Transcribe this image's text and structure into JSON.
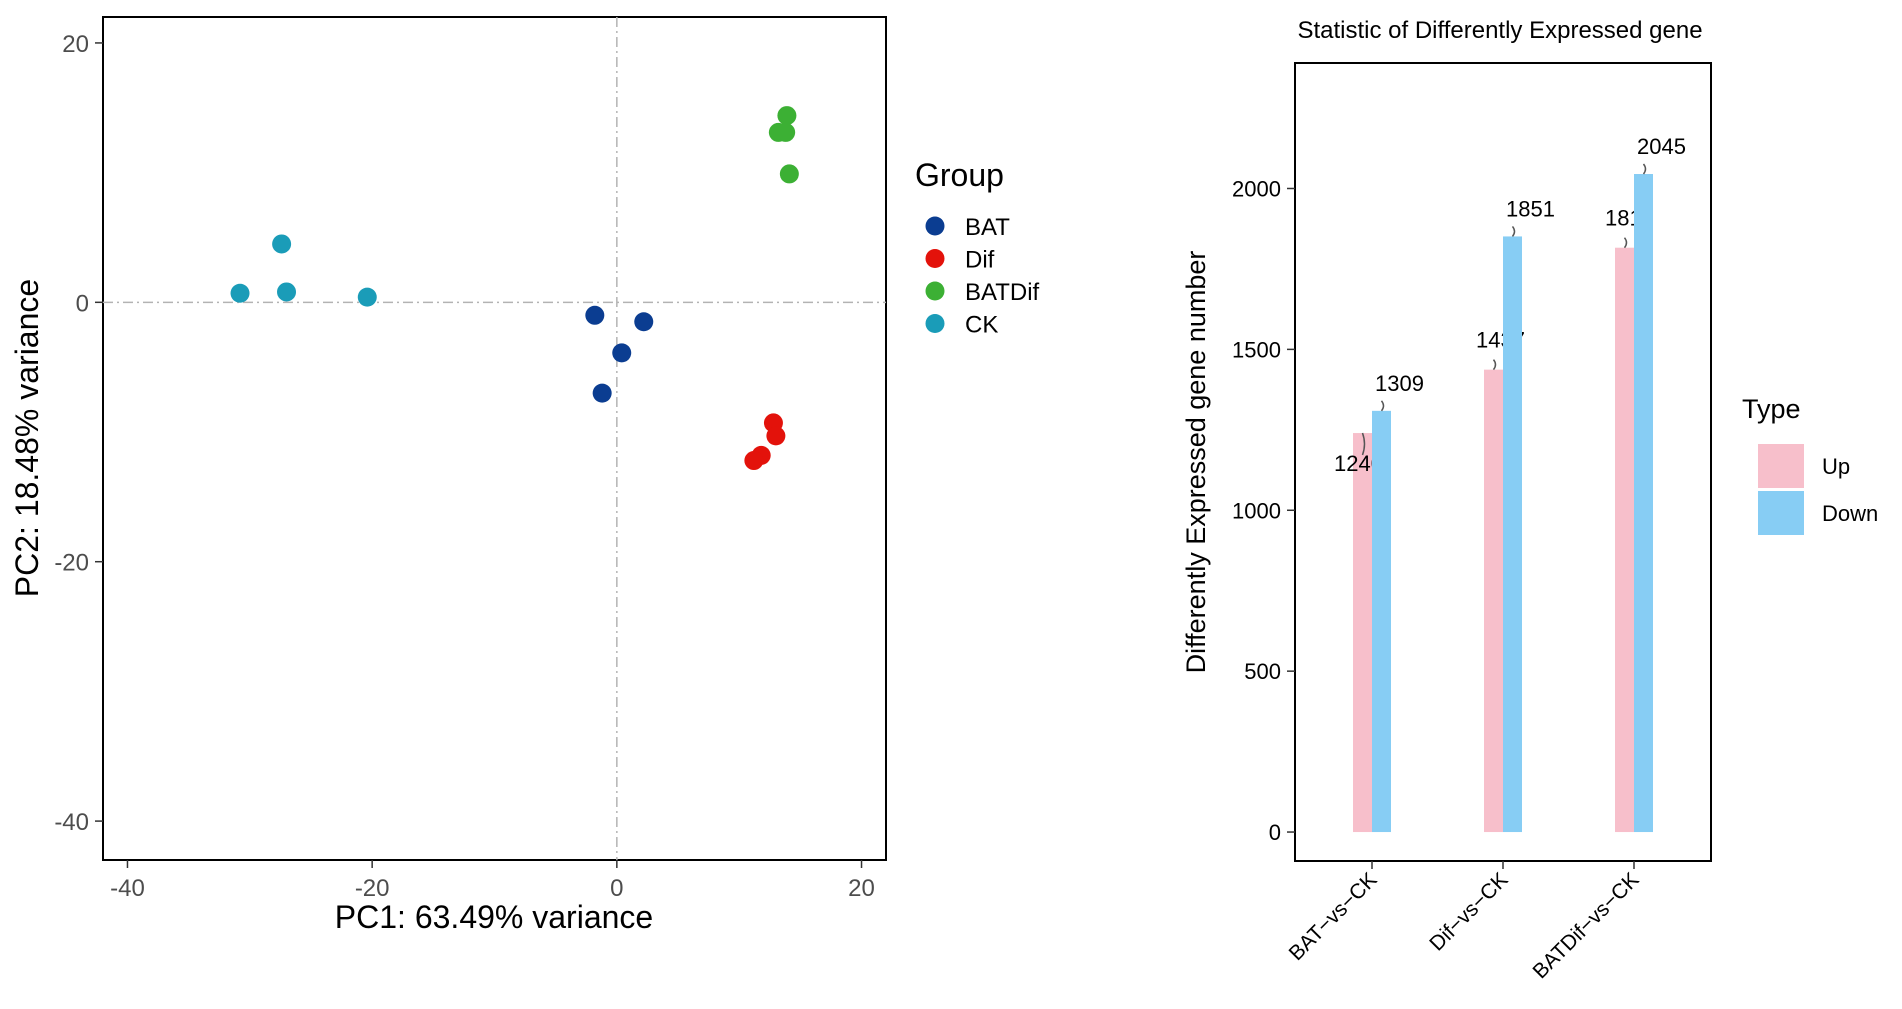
{
  "chart_data": [
    {
      "type": "scatter",
      "title": "",
      "xlabel": "PC1: 63.49% variance",
      "ylabel": "PC2: 18.48% variance",
      "xlim": [
        -42,
        22
      ],
      "ylim": [
        -43,
        22
      ],
      "xticks": [
        -40,
        -20,
        0,
        20
      ],
      "yticks": [
        -40,
        -20,
        0,
        20
      ],
      "grid": false,
      "reference_lines": {
        "x": 0,
        "y": 0
      },
      "legend": {
        "title": "Group",
        "position": "right"
      },
      "series": [
        {
          "name": "BAT",
          "color": "#0b3d91",
          "points": [
            [
              -1.8,
              -1.0
            ],
            [
              2.2,
              -1.5
            ],
            [
              0.4,
              -3.9
            ],
            [
              -1.2,
              -7.0
            ]
          ]
        },
        {
          "name": "Dif",
          "color": "#e3120b",
          "points": [
            [
              12.8,
              -9.3
            ],
            [
              13.0,
              -10.3
            ],
            [
              11.8,
              -11.8
            ],
            [
              11.2,
              -12.2
            ]
          ]
        },
        {
          "name": "BATDif",
          "color": "#3cb034",
          "points": [
            [
              13.9,
              14.4
            ],
            [
              13.2,
              13.1
            ],
            [
              13.8,
              13.1
            ],
            [
              14.1,
              9.9
            ]
          ]
        },
        {
          "name": "CK",
          "color": "#1a9cb8",
          "points": [
            [
              -27.4,
              4.5
            ],
            [
              -30.8,
              0.7
            ],
            [
              -27.0,
              0.8
            ],
            [
              -20.4,
              0.4
            ]
          ]
        }
      ]
    },
    {
      "type": "bar",
      "title": "Statistic of Differently Expressed gene",
      "xlabel": "",
      "ylabel": "Differently Expressed gene number",
      "ylim": [
        -90,
        2390
      ],
      "yticks": [
        0,
        500,
        1000,
        1500,
        2000
      ],
      "grid": false,
      "categories": [
        "BAT−vs−CK",
        "Dif−vs−CK",
        "BATDif−vs−CK"
      ],
      "legend": {
        "title": "Type",
        "position": "right"
      },
      "series": [
        {
          "name": "Up",
          "color": "#f7bfcb",
          "values": [
            1240,
            1437,
            1816
          ]
        },
        {
          "name": "Down",
          "color": "#87cdf4",
          "values": [
            1309,
            1851,
            2045
          ]
        }
      ]
    }
  ]
}
